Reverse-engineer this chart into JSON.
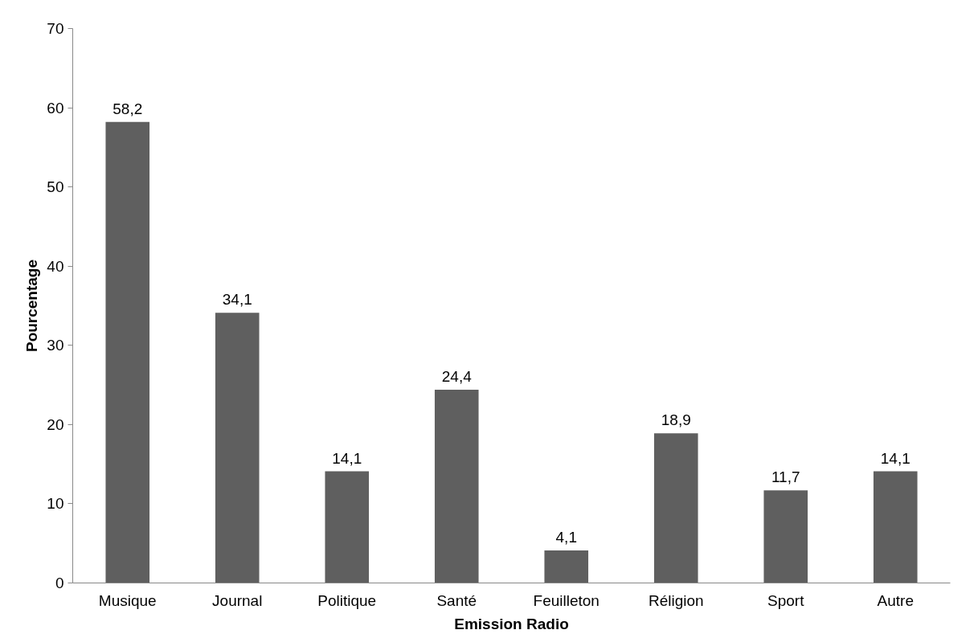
{
  "chart_data": {
    "type": "bar",
    "xlabel": "Emission Radio",
    "ylabel": "Pourcentage",
    "categories": [
      "Musique",
      "Journal",
      "Politique",
      "Santé",
      "Feuilleton",
      "Réligion",
      "Sport",
      "Autre"
    ],
    "values": [
      58.2,
      34.1,
      14.1,
      24.4,
      4.1,
      18.9,
      11.7,
      14.1
    ],
    "value_labels": [
      "58,2",
      "34,1",
      "14,1",
      "24,4",
      "4,1",
      "18,9",
      "11,7",
      "14,1"
    ],
    "color": "#5f5f5f",
    "ylim": [
      0,
      70
    ],
    "yticks": [
      0,
      10,
      20,
      30,
      40,
      50,
      60,
      70
    ],
    "grid": false
  }
}
